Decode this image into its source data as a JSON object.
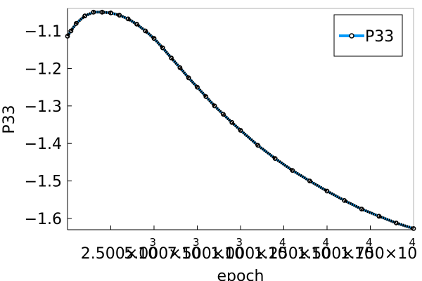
{
  "chart_data": {
    "type": "line",
    "title": "",
    "xlabel": "epoch",
    "ylabel": "P33",
    "xlim": [
      1,
      20000
    ],
    "ylim": [
      -1.63,
      -1.04
    ],
    "grid": false,
    "legend_position": "top-right",
    "x_ticks": [
      {
        "value": 2500,
        "label": "2.500×10",
        "exp": "3"
      },
      {
        "value": 5000,
        "label": "5.000×10",
        "exp": "3"
      },
      {
        "value": 7500,
        "label": "7.500×10",
        "exp": "3"
      },
      {
        "value": 10000,
        "label": "1.000×10",
        "exp": "4"
      },
      {
        "value": 12500,
        "label": "1.250×10",
        "exp": "4"
      },
      {
        "value": 15000,
        "label": "1.500×10",
        "exp": "4"
      },
      {
        "value": 17500,
        "label": "1.750×10",
        "exp": "4"
      }
    ],
    "y_ticks": [
      {
        "value": -1.1,
        "label": "−1.1"
      },
      {
        "value": -1.2,
        "label": "−1.2"
      },
      {
        "value": -1.3,
        "label": "−1.3"
      },
      {
        "value": -1.4,
        "label": "−1.4"
      },
      {
        "value": -1.5,
        "label": "−1.5"
      },
      {
        "value": -1.6,
        "label": "−1.6"
      }
    ],
    "series": [
      {
        "name": "P33",
        "color": "#009af9",
        "marker_color": "#000000",
        "x": [
          1,
          200,
          500,
          1000,
          1500,
          2000,
          2500,
          3000,
          3500,
          4000,
          4500,
          5000,
          5500,
          6000,
          6500,
          7000,
          7500,
          8000,
          8500,
          9000,
          9500,
          10000,
          11000,
          12000,
          13000,
          14000,
          15000,
          16000,
          17000,
          18000,
          19000,
          20000
        ],
        "y": [
          -1.114,
          -1.1,
          -1.08,
          -1.06,
          -1.05,
          -1.05,
          -1.052,
          -1.058,
          -1.068,
          -1.082,
          -1.1,
          -1.12,
          -1.145,
          -1.172,
          -1.198,
          -1.225,
          -1.25,
          -1.275,
          -1.3,
          -1.322,
          -1.344,
          -1.365,
          -1.405,
          -1.44,
          -1.472,
          -1.5,
          -1.527,
          -1.552,
          -1.575,
          -1.594,
          -1.612,
          -1.627
        ]
      }
    ]
  }
}
